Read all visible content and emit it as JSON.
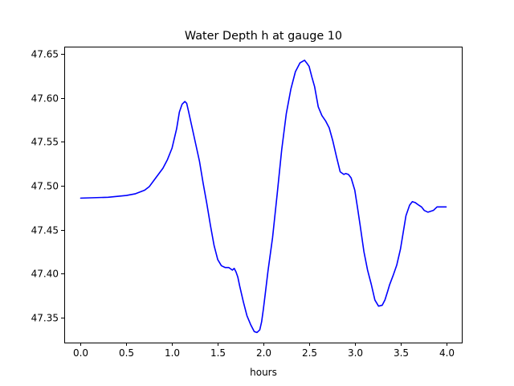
{
  "chart_data": {
    "type": "line",
    "title": "Water Depth h at gauge 10",
    "xlabel": "hours",
    "ylabel": "",
    "xlim": [
      -0.18,
      4.18
    ],
    "ylim": [
      47.3215,
      47.6585
    ],
    "xticks": [
      {
        "value": 0.0,
        "label": "0.0"
      },
      {
        "value": 0.5,
        "label": "0.5"
      },
      {
        "value": 1.0,
        "label": "1.0"
      },
      {
        "value": 1.5,
        "label": "1.5"
      },
      {
        "value": 2.0,
        "label": "2.0"
      },
      {
        "value": 2.5,
        "label": "2.5"
      },
      {
        "value": 3.0,
        "label": "3.0"
      },
      {
        "value": 3.5,
        "label": "3.5"
      },
      {
        "value": 4.0,
        "label": "4.0"
      }
    ],
    "yticks": [
      {
        "value": 47.35,
        "label": "47.35"
      },
      {
        "value": 47.4,
        "label": "47.40"
      },
      {
        "value": 47.45,
        "label": "47.45"
      },
      {
        "value": 47.5,
        "label": "47.50"
      },
      {
        "value": 47.55,
        "label": "47.55"
      },
      {
        "value": 47.6,
        "label": "47.60"
      },
      {
        "value": 47.65,
        "label": "47.65"
      }
    ],
    "grid": false,
    "series": [
      {
        "color": "#0000ff",
        "x": [
          0.0,
          0.3,
          0.5,
          0.6,
          0.7,
          0.75,
          0.8,
          0.85,
          0.9,
          0.95,
          1.0,
          1.05,
          1.08,
          1.11,
          1.14,
          1.16,
          1.18,
          1.22,
          1.26,
          1.3,
          1.34,
          1.38,
          1.42,
          1.46,
          1.5,
          1.54,
          1.58,
          1.62,
          1.66,
          1.68,
          1.7,
          1.72,
          1.74,
          1.78,
          1.82,
          1.86,
          1.9,
          1.93,
          1.96,
          1.98,
          2.0,
          2.02,
          2.05,
          2.1,
          2.15,
          2.2,
          2.25,
          2.3,
          2.35,
          2.4,
          2.45,
          2.48,
          2.5,
          2.53,
          2.56,
          2.6,
          2.64,
          2.68,
          2.72,
          2.76,
          2.8,
          2.84,
          2.88,
          2.9,
          2.93,
          2.96,
          3.0,
          3.03,
          3.06,
          3.1,
          3.14,
          3.18,
          3.22,
          3.26,
          3.3,
          3.33,
          3.36,
          3.38,
          3.42,
          3.46,
          3.5,
          3.53,
          3.56,
          3.6,
          3.63,
          3.66,
          3.7,
          3.73,
          3.76,
          3.8,
          3.83,
          3.86,
          3.9,
          3.95,
          4.0
        ],
        "y": [
          47.486,
          47.487,
          47.489,
          47.491,
          47.495,
          47.499,
          47.506,
          47.513,
          47.52,
          47.53,
          47.543,
          47.565,
          47.584,
          47.593,
          47.596,
          47.594,
          47.585,
          47.566,
          47.547,
          47.528,
          47.503,
          47.48,
          47.455,
          47.432,
          47.416,
          47.409,
          47.407,
          47.407,
          47.404,
          47.406,
          47.402,
          47.396,
          47.386,
          47.368,
          47.352,
          47.342,
          47.334,
          47.333,
          47.336,
          47.345,
          47.36,
          47.377,
          47.403,
          47.441,
          47.49,
          47.541,
          47.582,
          47.61,
          47.63,
          47.64,
          47.643,
          47.639,
          47.636,
          47.624,
          47.613,
          47.59,
          47.58,
          47.574,
          47.566,
          47.551,
          47.533,
          47.516,
          47.513,
          47.514,
          47.513,
          47.509,
          47.495,
          47.475,
          47.454,
          47.425,
          47.404,
          47.388,
          47.37,
          47.363,
          47.364,
          47.37,
          47.38,
          47.387,
          47.398,
          47.41,
          47.428,
          47.447,
          47.466,
          47.478,
          47.482,
          47.481,
          47.478,
          47.476,
          47.472,
          47.47,
          47.471,
          47.472,
          47.476,
          47.476,
          47.476
        ]
      }
    ]
  }
}
